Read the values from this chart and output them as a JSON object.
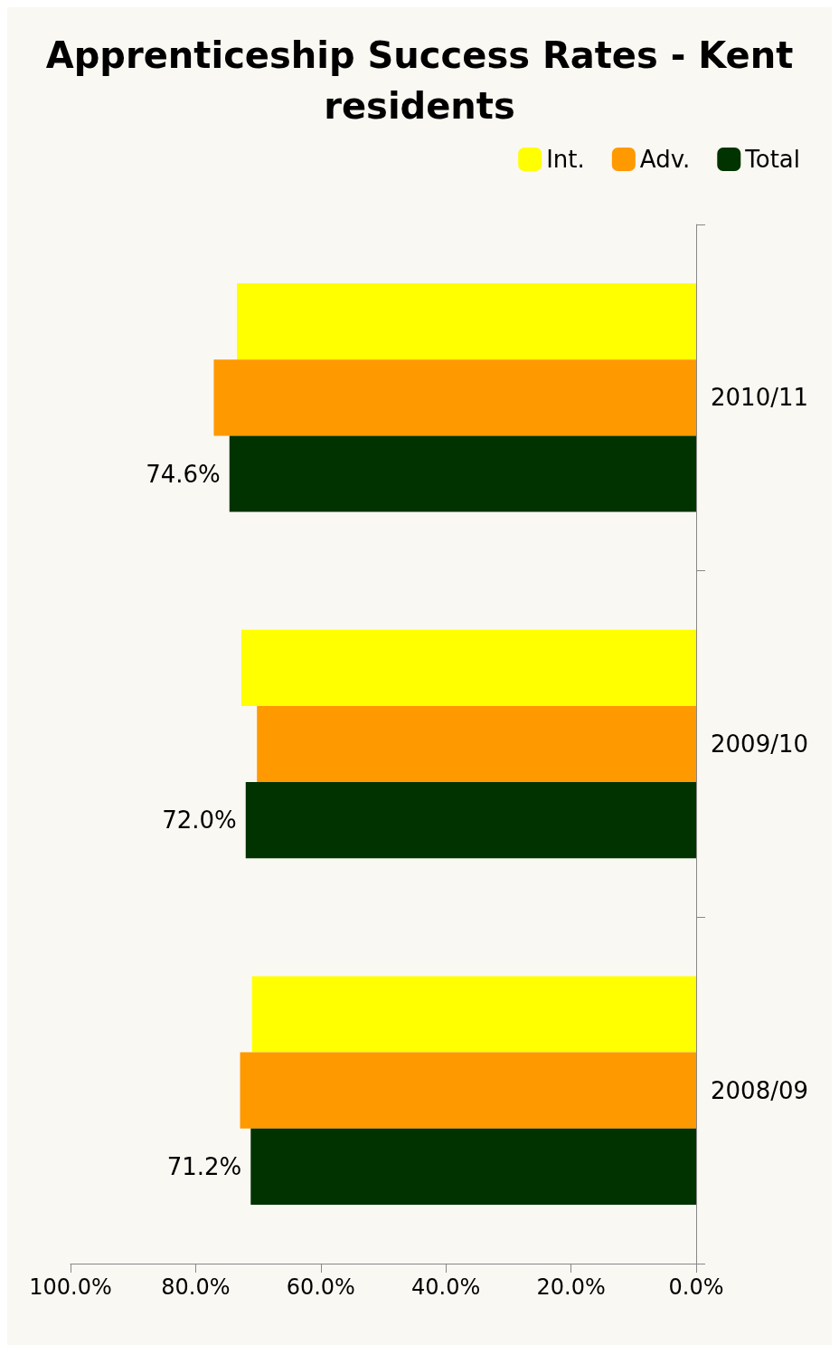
{
  "chart_data": {
    "type": "bar",
    "orientation": "horizontal",
    "title": "Apprenticeship Success Rates - Kent\nresidents",
    "categories": [
      "2010/11",
      "2009/10",
      "2008/09"
    ],
    "series": [
      {
        "name": "Int.",
        "color": "#ffff00",
        "values": [
          73.4,
          72.7,
          71.0
        ]
      },
      {
        "name": "Adv.",
        "color": "#ff9900",
        "values": [
          77.1,
          70.2,
          72.9
        ]
      },
      {
        "name": "Total",
        "color": "#003300",
        "values": [
          74.6,
          72.0,
          71.2
        ],
        "value_labels": [
          "74.6%",
          "72.0%",
          "71.2%"
        ]
      }
    ],
    "xlim": [
      100,
      0
    ],
    "xticks": [
      {
        "value": 0,
        "label": "0.0%"
      },
      {
        "value": 20,
        "label": "20.0%"
      },
      {
        "value": 40,
        "label": "40.0%"
      },
      {
        "value": 60,
        "label": "60.0%"
      },
      {
        "value": 80,
        "label": "80.0%"
      },
      {
        "value": 100,
        "label": "100.0%"
      }
    ],
    "legend": "top right"
  }
}
